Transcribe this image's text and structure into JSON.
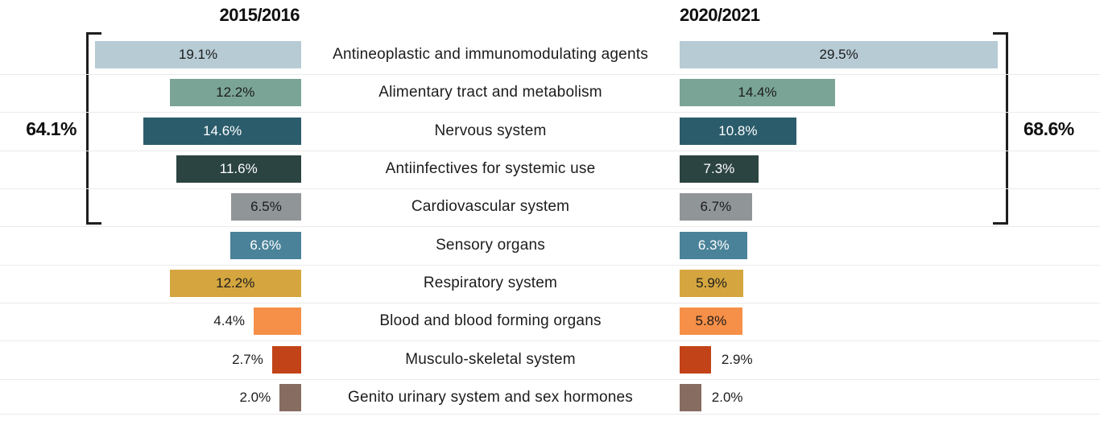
{
  "chart_data": {
    "type": "bar",
    "variant": "butterfly-comparison",
    "title": "",
    "categories": [
      "Antineoplastic and immunomodulating agents",
      "Alimentary tract and metabolism",
      "Nervous system",
      "Antiinfectives for systemic use",
      "Cardiovascular system",
      "Sensory organs",
      "Respiratory system",
      "Blood and blood forming organs",
      "Musculo-skeletal system",
      "Genito urinary system and sex hormones"
    ],
    "series": [
      {
        "name": "2015/2016",
        "side": "left",
        "values": [
          19.1,
          12.2,
          14.6,
          11.6,
          6.5,
          6.6,
          12.2,
          4.4,
          2.7,
          2.0
        ]
      },
      {
        "name": "2020/2021",
        "side": "right",
        "values": [
          29.5,
          14.4,
          10.8,
          7.3,
          6.7,
          6.3,
          5.9,
          5.8,
          2.9,
          2.0
        ]
      }
    ],
    "value_suffix": "%",
    "annotations": {
      "left_total": "64.1%",
      "right_total": "68.6%",
      "bracket_rows_grouped": 5
    },
    "palette": [
      "#b7cbd5",
      "#7aa596",
      "#2b5c6b",
      "#2b4442",
      "#909598",
      "#4a8299",
      "#d5a63f",
      "#f68f47",
      "#c24318",
      "#876c61"
    ],
    "text_colors": {
      "dark": "#1c1c1c",
      "light": "#ffffff"
    },
    "layout_hints": {
      "labels_position": "center-column",
      "grid": "horizontal-row-separators",
      "legend": "column-titles-top"
    }
  }
}
